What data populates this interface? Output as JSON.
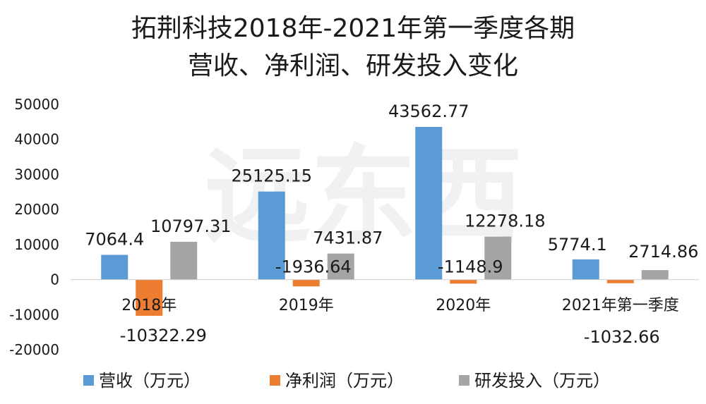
{
  "chart_data": {
    "type": "bar",
    "title_lines": [
      "拓荆科技2018年-2021年第一季度各期",
      "营收、净利润、研发投入变化"
    ],
    "categories": [
      "2018年",
      "2019年",
      "2020年",
      "2021年第一季度"
    ],
    "series": [
      {
        "name": "营收（万元）",
        "values": [
          7064.4,
          25125.15,
          43562.77,
          5774.1
        ],
        "color": "#5b9bd5"
      },
      {
        "name": "净利润（万元）",
        "values": [
          -10322.29,
          -1936.64,
          -1148.9,
          -1032.66
        ],
        "color": "#ed7d31"
      },
      {
        "name": "研发投入（万元）",
        "values": [
          10797.31,
          7431.87,
          12278.18,
          2714.86
        ],
        "color": "#a5a5a5"
      }
    ],
    "data_labels": [
      [
        "7064.4",
        "25125.15",
        "43562.77",
        "5774.1"
      ],
      [
        "-10322.29",
        "-1936.64",
        "-1148.9",
        "-1032.66"
      ],
      [
        "10797.31",
        "7431.87",
        "12278.18",
        "2714.86"
      ]
    ],
    "yticks": [
      "50000",
      "40000",
      "30000",
      "20000",
      "10000",
      "0",
      "-10000",
      "-20000"
    ],
    "ylim": [
      -20000,
      50000
    ],
    "grid": false,
    "legend_position": "bottom"
  }
}
